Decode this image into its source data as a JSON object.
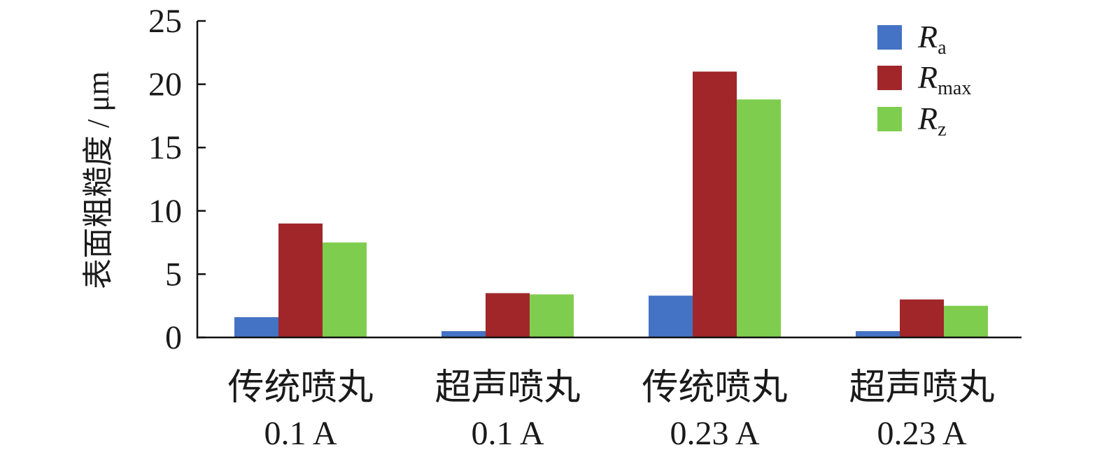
{
  "chart_data": {
    "type": "bar",
    "title": "",
    "xlabel": "",
    "ylabel": "表面粗糙度 / μm",
    "ylim": [
      0,
      25
    ],
    "yticks": [
      0,
      5,
      10,
      15,
      20,
      25
    ],
    "grid": false,
    "legend_position": "top-right",
    "categories": [
      {
        "line1": "传统喷丸",
        "line2": "0.1 A"
      },
      {
        "line1": "超声喷丸",
        "line2": "0.1 A"
      },
      {
        "line1": "传统喷丸",
        "line2": "0.23 A"
      },
      {
        "line1": "超声喷丸",
        "line2": "0.23 A"
      }
    ],
    "series": [
      {
        "name": "Ra",
        "symbol": "R",
        "subscript": "a",
        "color": "#4472C4",
        "values": [
          1.6,
          0.5,
          3.3,
          0.5
        ]
      },
      {
        "name": "Rmax",
        "symbol": "R",
        "subscript": "max",
        "color": "#A0262A",
        "values": [
          9.0,
          3.5,
          21.0,
          3.0
        ]
      },
      {
        "name": "Rz",
        "symbol": "R",
        "subscript": "z",
        "color": "#7FCD4F",
        "values": [
          7.5,
          3.4,
          18.8,
          2.5
        ]
      }
    ]
  }
}
